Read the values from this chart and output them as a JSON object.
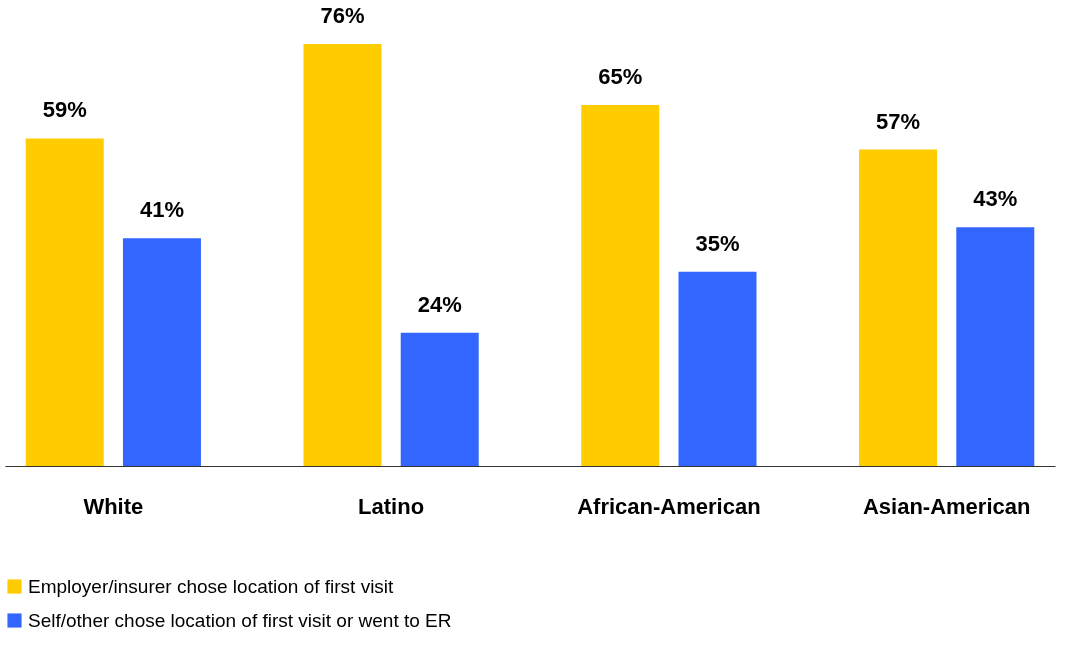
{
  "chart_data": {
    "type": "bar",
    "categories": [
      "White",
      "Latino",
      "African-American",
      "Asian-American"
    ],
    "series": [
      {
        "name": "Employer/insurer chose location of first visit",
        "color": "#ffcc00",
        "values": [
          59,
          76,
          65,
          57
        ],
        "value_labels": [
          "59%",
          "76%",
          "65%",
          "57%"
        ]
      },
      {
        "name": "Self/other chose location of first visit or went to ER",
        "color": "#3366ff",
        "values": [
          41,
          24,
          35,
          43
        ],
        "value_labels": [
          "41%",
          "24%",
          "35%",
          "43%"
        ]
      }
    ],
    "legend": "bottom",
    "grid": false
  }
}
